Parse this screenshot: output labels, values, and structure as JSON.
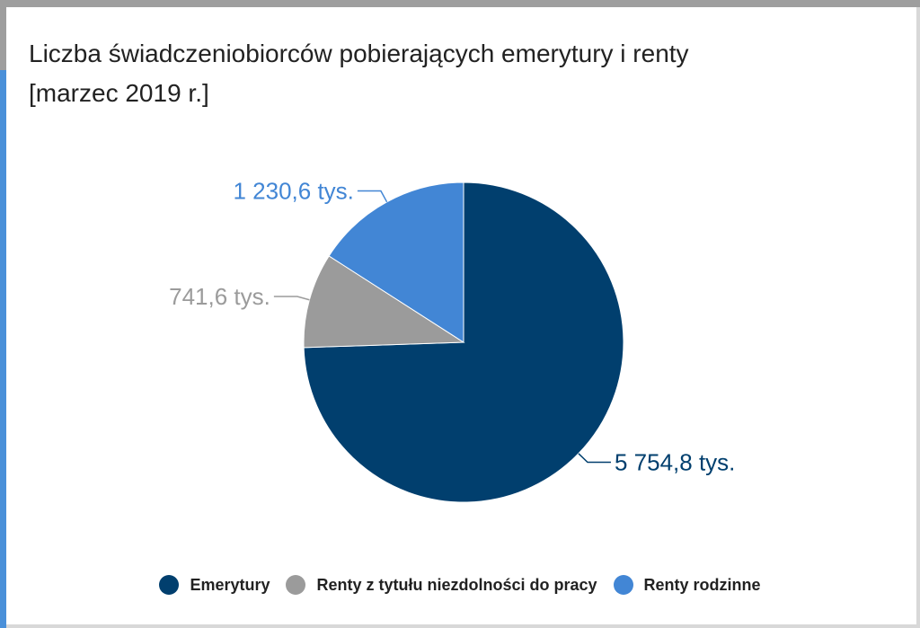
{
  "title_line1": "Liczba świadczeniobiorców pobierających emerytury i renty",
  "title_line2": "[marzec 2019 r.]",
  "chart_data": {
    "type": "pie",
    "categories": [
      "Emerytury",
      "Renty z tytułu niezdolności do pracy",
      "Renty rodzinne"
    ],
    "values": [
      5754.8,
      741.6,
      1230.6
    ],
    "data_labels": [
      "5 754,8 tys.",
      "741,6 tys.",
      "1 230,6 tys."
    ],
    "colors": [
      "#013f6e",
      "#9b9b9b",
      "#4286d5"
    ],
    "unit": "tys.",
    "legend_position": "bottom"
  }
}
